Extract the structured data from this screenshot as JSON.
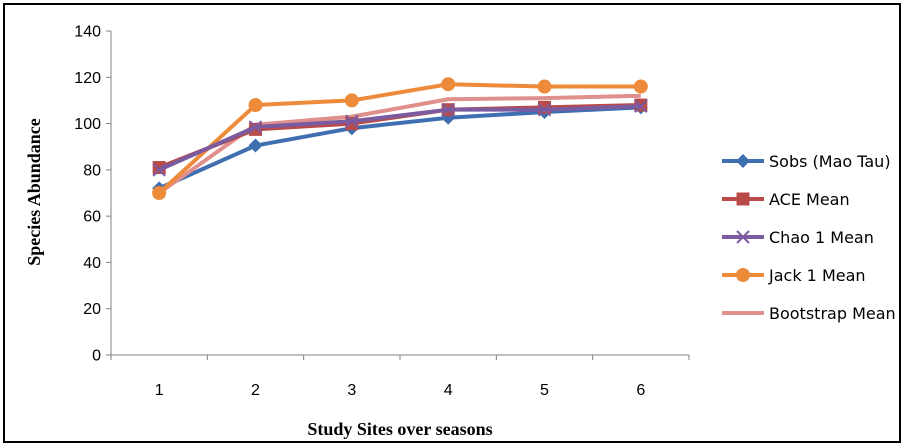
{
  "chart_data": {
    "type": "line",
    "title": "",
    "xlabel": "Study Sites over seasons",
    "ylabel": "Species Abundance",
    "categories": [
      "1",
      "2",
      "3",
      "4",
      "5",
      "6"
    ],
    "ylim": [
      0,
      140
    ],
    "yticks": [
      0,
      20,
      40,
      60,
      80,
      100,
      120,
      140
    ],
    "grid": false,
    "legend_position": "right",
    "series": [
      {
        "name": "Sobs (Mao Tau)",
        "color": "#3f6fb0",
        "marker": "diamond",
        "values": [
          72,
          90.5,
          98,
          102.5,
          105,
          107
        ]
      },
      {
        "name": "ACE Mean",
        "color": "#b94a48",
        "marker": "square",
        "values": [
          81,
          97.5,
          100,
          106,
          107,
          108
        ]
      },
      {
        "name": "Chao 1 Mean",
        "color": "#7a5ba0",
        "marker": "x",
        "values": [
          80,
          98.5,
          101,
          106,
          106,
          107.5
        ]
      },
      {
        "name": "Jack 1 Mean",
        "color": "#ed8b3a",
        "marker": "circle",
        "values": [
          70,
          108,
          110,
          117,
          116,
          116
        ]
      },
      {
        "name": "Bootstrap Mean",
        "color": "#e0908c",
        "marker": "none",
        "values": [
          70,
          99.5,
          103,
          110.5,
          111,
          112
        ]
      }
    ]
  }
}
